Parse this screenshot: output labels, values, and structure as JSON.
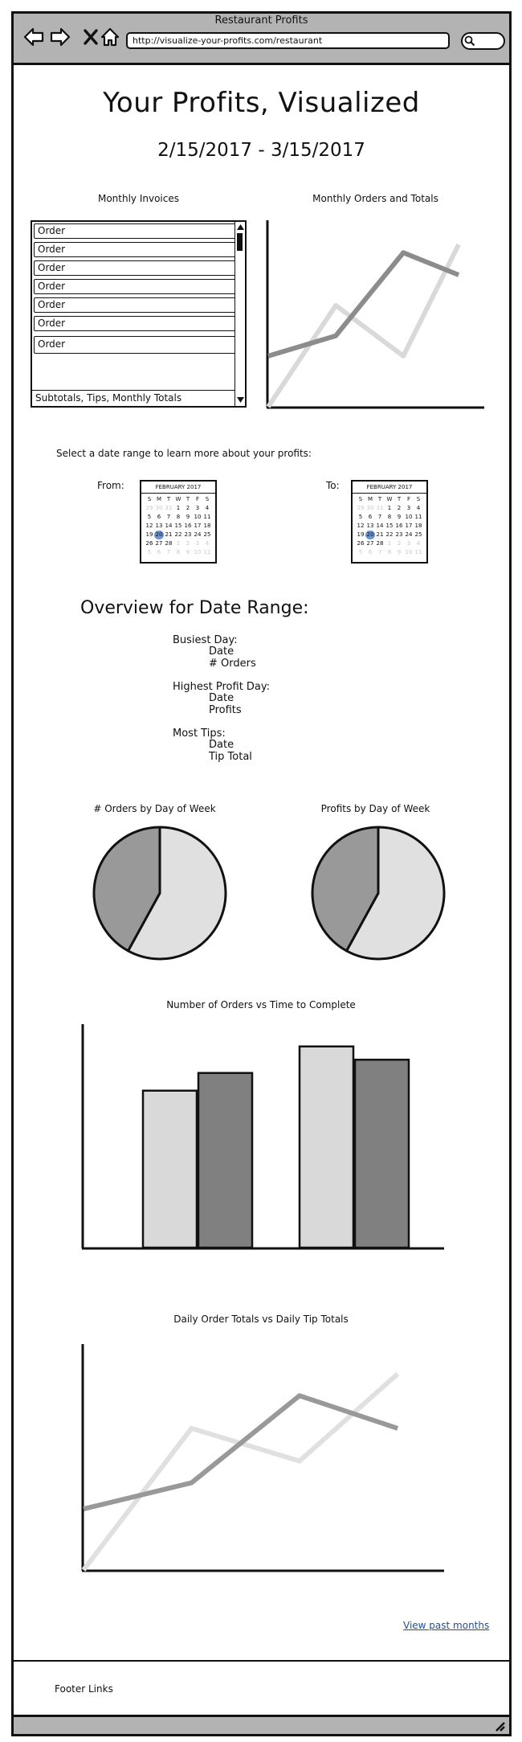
{
  "window": {
    "title": "Restaurant Profits"
  },
  "browser": {
    "url": "http://visualize-your-profits.com/restaurant"
  },
  "header": {
    "title": "Your Profits, Visualized",
    "date_range": "2/15/2017 - 3/15/2017"
  },
  "invoices": {
    "title": "Monthly Invoices",
    "rows": [
      "Order",
      "Order",
      "Order",
      "Order",
      "Order",
      "Order",
      "Order"
    ],
    "footer": "Subtotals, Tips, Monthly Totals"
  },
  "orders_chart": {
    "title": "Monthly Orders and Totals",
    "chart_data": {
      "type": "line",
      "x": [
        0,
        1,
        2,
        3,
        4
      ],
      "series": [
        {
          "values": [
            0,
            5,
            2.5,
            8
          ],
          "x": [
            0,
            1.1,
            2.2,
            3.1
          ]
        },
        {
          "values": [
            2.5,
            3.5,
            7.6,
            6.5
          ],
          "x": [
            0,
            1.1,
            2.2,
            3.1
          ]
        }
      ],
      "colors": [
        "#d9d9d9",
        "#8c8c8c"
      ]
    }
  },
  "date_select": {
    "prompt": "Select a date range to learn more about your profits:",
    "from_label": "From:",
    "to_label": "To:",
    "from_calendar": {
      "month": "FEBRUARY 2017",
      "weekdays": [
        "S",
        "M",
        "T",
        "W",
        "T",
        "F",
        "S"
      ],
      "days": [
        "29",
        "30",
        "31",
        "1",
        "2",
        "3",
        "4",
        "5",
        "6",
        "7",
        "8",
        "9",
        "10",
        "11",
        "12",
        "13",
        "14",
        "15",
        "16",
        "17",
        "18",
        "19",
        "20",
        "21",
        "22",
        "23",
        "24",
        "25",
        "26",
        "27",
        "28",
        "1",
        "2",
        "3",
        "4",
        "5",
        "6",
        "7",
        "8",
        "9",
        "10",
        "11"
      ],
      "selected": "20"
    },
    "to_calendar": {
      "month": "FEBRUARY 2017",
      "weekdays": [
        "S",
        "M",
        "T",
        "W",
        "T",
        "F",
        "S"
      ],
      "days": [
        "29",
        "30",
        "31",
        "1",
        "2",
        "3",
        "4",
        "5",
        "6",
        "7",
        "8",
        "9",
        "10",
        "11",
        "12",
        "13",
        "14",
        "15",
        "16",
        "17",
        "18",
        "19",
        "20",
        "21",
        "22",
        "23",
        "24",
        "25",
        "26",
        "27",
        "28",
        "1",
        "2",
        "3",
        "4",
        "5",
        "6",
        "7",
        "8",
        "9",
        "10",
        "11"
      ],
      "selected": "20"
    }
  },
  "overview": {
    "title": "Overview for Date Range:",
    "busiest_label": "Busiest Day:",
    "busiest_date": "Date",
    "busiest_orders": "# Orders",
    "profit_label": "Highest Profit Day:",
    "profit_date": "Date",
    "profit_value": "Profits",
    "tips_label": "Most Tips:",
    "tips_date": "Date",
    "tips_total": "Tip Total"
  },
  "pies": {
    "orders_title": "# Orders by Day of Week",
    "profits_title": "Profits by Day of Week",
    "chart_data": [
      {
        "type": "pie",
        "values": [
          58,
          42
        ],
        "colors": [
          "#e0e0e0",
          "#999999"
        ]
      },
      {
        "type": "pie",
        "values": [
          58,
          42
        ],
        "colors": [
          "#e0e0e0",
          "#999999"
        ]
      }
    ]
  },
  "bar_chart": {
    "title": "Number of Orders vs Time to Complete",
    "chart_data": {
      "type": "bar",
      "categories": [
        "",
        ""
      ],
      "series": [
        {
          "values": [
            71,
            91
          ]
        },
        {
          "values": [
            79,
            85
          ]
        }
      ],
      "colors": [
        "#d9d9d9",
        "#808080"
      ],
      "ylim": [
        0,
        100
      ]
    }
  },
  "tips_chart": {
    "title": "Daily Order Totals vs Daily Tip Totals",
    "chart_data": {
      "type": "line",
      "series": [
        {
          "x": [
            0,
            1.1,
            2.2,
            3.2
          ],
          "values": [
            0,
            6.5,
            5,
            9
          ]
        },
        {
          "x": [
            0,
            1.1,
            2.2,
            3.2
          ],
          "values": [
            2.8,
            4,
            8,
            6.5
          ]
        }
      ],
      "colors": [
        "#e0e0e0",
        "#999999"
      ]
    }
  },
  "links": {
    "view_past": "View past months"
  },
  "footer": {
    "links_label": "Footer Links"
  }
}
